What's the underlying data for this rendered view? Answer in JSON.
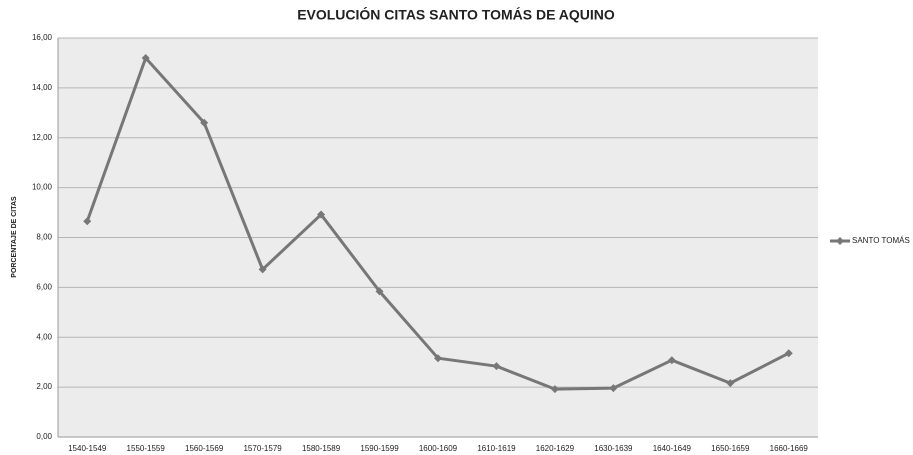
{
  "chart_data": {
    "type": "line",
    "title": "EVOLUCIÓN CITAS SANTO TOMÁS DE AQUINO",
    "y_label": "PORCENTAJE DE CITAS",
    "categories": [
      "1540-1549",
      "1550-1559",
      "1560-1569",
      "1570-1579",
      "1580-1589",
      "1590-1599",
      "1600-1609",
      "1610-1619",
      "1620-1629",
      "1630-1639",
      "1640-1649",
      "1650-1659",
      "1660-1669"
    ],
    "series": [
      {
        "name": "SANTO TOMÁS",
        "color": "#777777",
        "values": [
          8.65,
          15.2,
          12.6,
          6.72,
          8.92,
          5.84,
          3.16,
          2.84,
          1.92,
          1.96,
          3.08,
          2.16,
          3.36
        ]
      }
    ],
    "ylim": [
      0,
      16
    ],
    "yticks": [
      {
        "value": 0,
        "label": "0,00"
      },
      {
        "value": 2,
        "label": "2,00"
      },
      {
        "value": 4,
        "label": "4,00"
      },
      {
        "value": 6,
        "label": "6,00"
      },
      {
        "value": 8,
        "label": "8,00"
      },
      {
        "value": 10,
        "label": "10,00"
      },
      {
        "value": 12,
        "label": "12,00"
      },
      {
        "value": 14,
        "label": "14,00"
      },
      {
        "value": 16,
        "label": "16,00"
      }
    ],
    "grid": true,
    "legend": "right"
  }
}
